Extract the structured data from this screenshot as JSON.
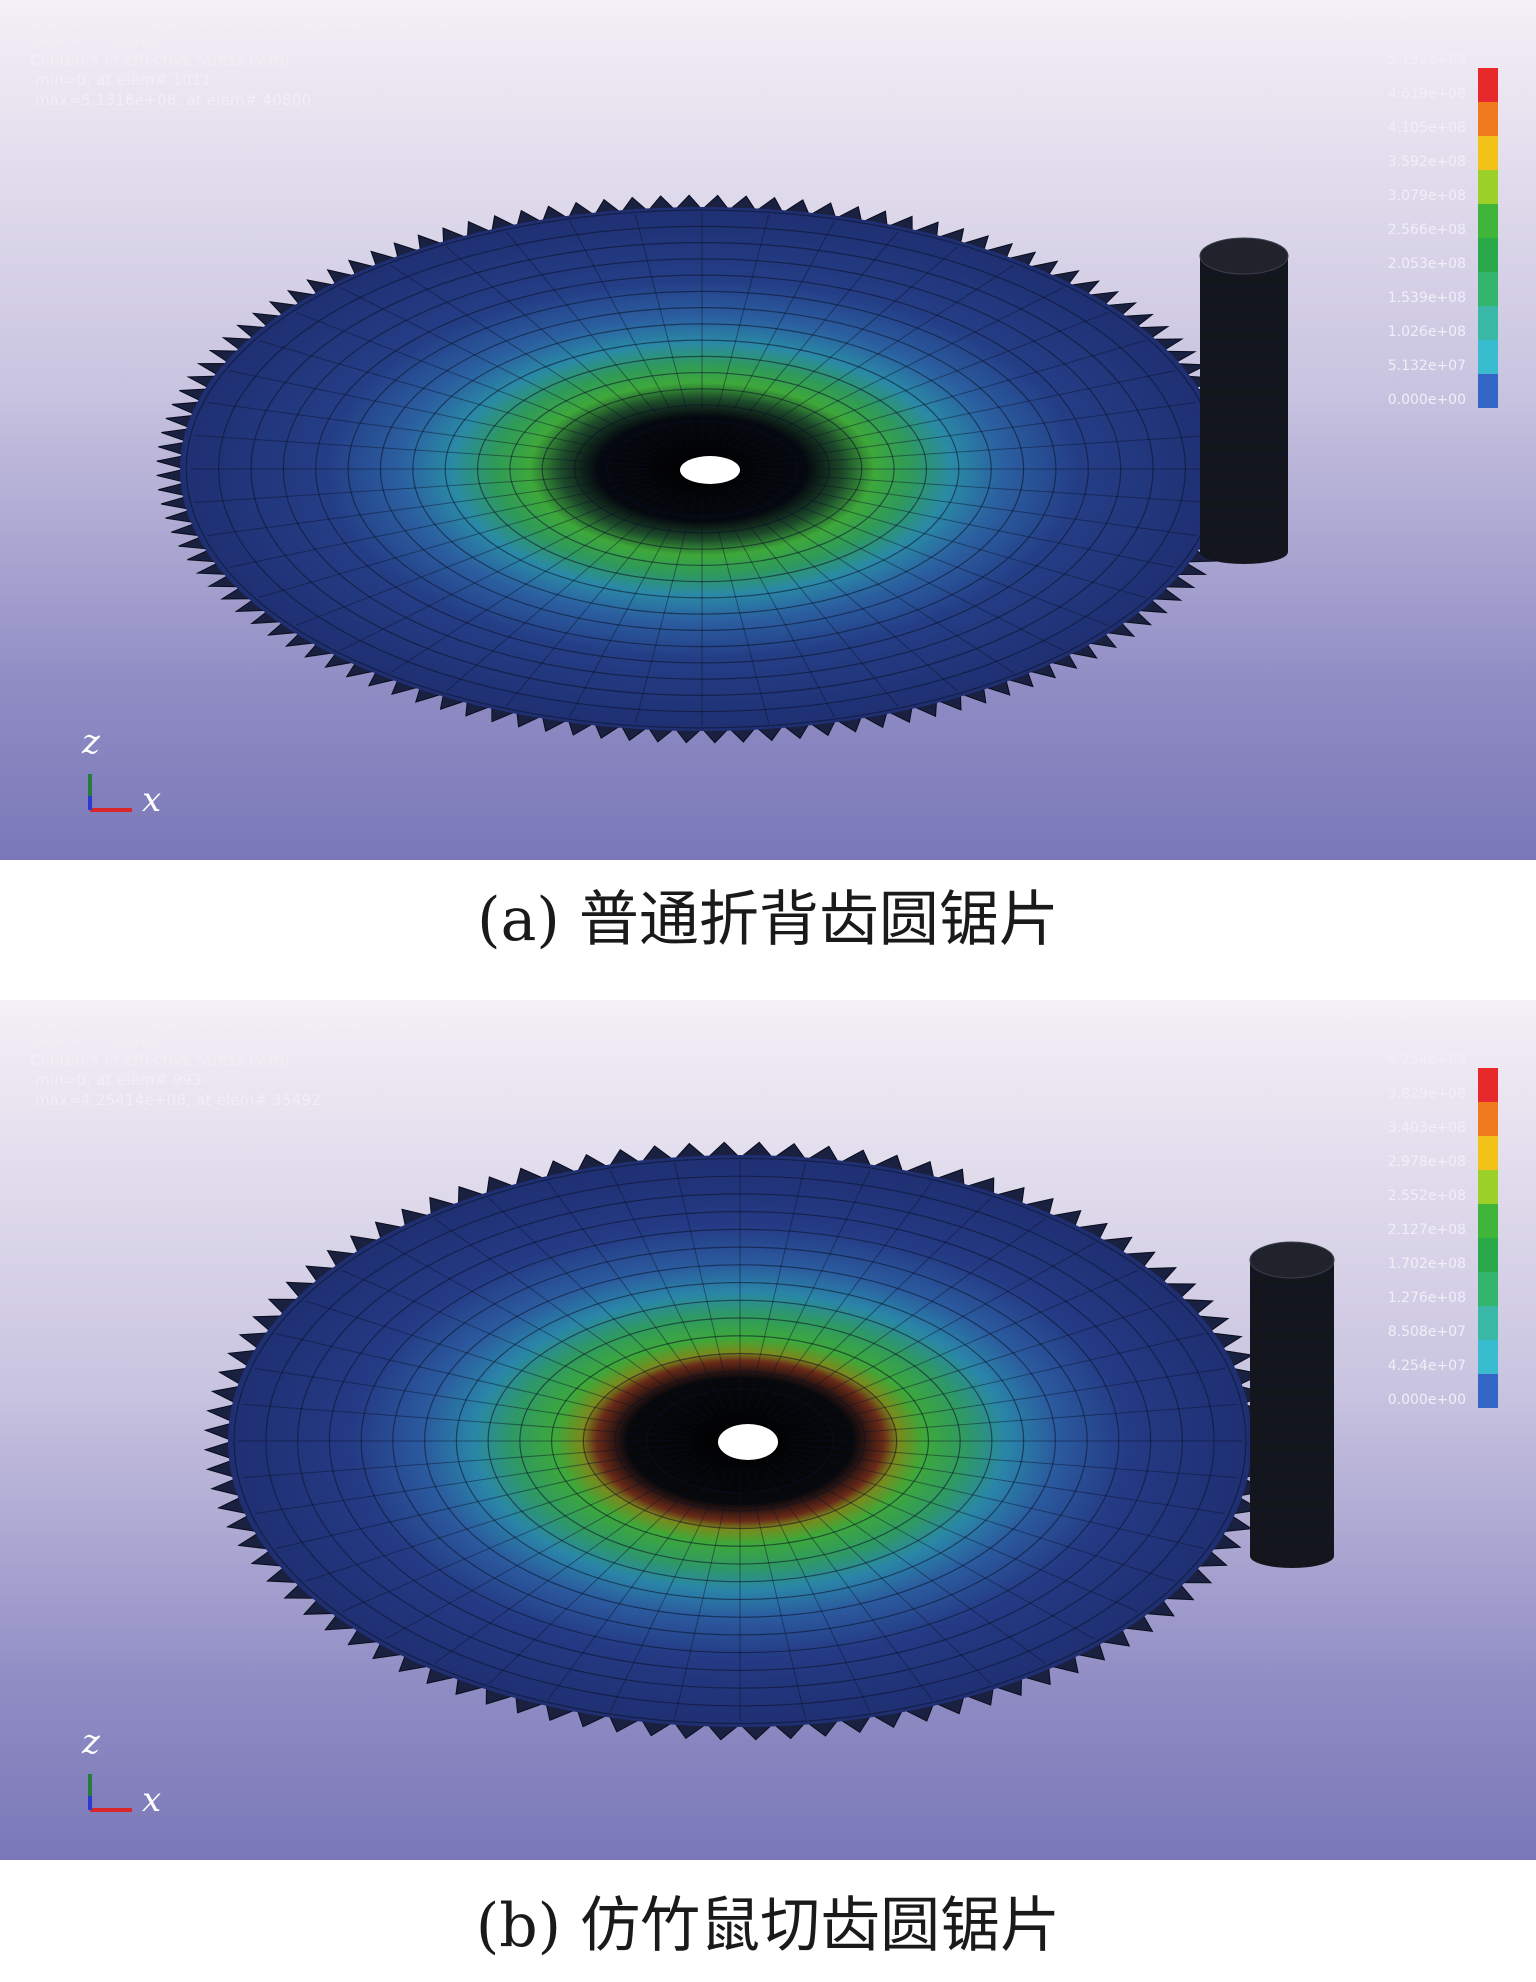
{
  "panels": [
    {
      "header": {
        "title": "LS-DYNA keyword deck by LS-PrePost",
        "time": "Time =      0.925",
        "contours": "Contours of Effective Stress (v-m)",
        "min": " min=0, at elem# 1011",
        "max": " max=5.1316e+08, at elem# 40800"
      },
      "legend": {
        "title": "Effective Stress (v-m)",
        "labels": [
          "5.132e+08",
          "4.619e+08",
          "4.105e+08",
          "3.592e+08",
          "3.079e+08",
          "2.566e+08",
          "2.053e+08",
          "1.539e+08",
          "1.026e+08",
          "5.132e+07",
          "0.000e+00"
        ]
      },
      "axis": {
        "z": "z",
        "x": "x"
      },
      "caption": "(a)  普通折背齿圆锯片"
    },
    {
      "header": {
        "title": "LS-DYNA keyword deck by LS-PrePost",
        "time": "Time =      0.925",
        "contours": "Contours of Effective Stress (v-m)",
        "min": " min=0, at elem# 993",
        "max": " max=4.25414e+08, at elem# 35492"
      },
      "legend": {
        "title": "Effective Stress (v-m)",
        "labels": [
          "4.254e+08",
          "3.829e+08",
          "3.403e+08",
          "2.978e+08",
          "2.552e+08",
          "2.127e+08",
          "1.702e+08",
          "1.276e+08",
          "8.508e+07",
          "4.254e+07",
          "0.000e+00"
        ]
      },
      "axis": {
        "z": "z",
        "x": "x"
      },
      "caption": "(b)  仿竹鼠切齿圆锯片"
    }
  ],
  "colors": {
    "legend_scale": [
      "#e8282a",
      "#f07a1e",
      "#f2c21a",
      "#9ed02a",
      "#3fb53a",
      "#2aa84a",
      "#33b56e",
      "#39b8a8",
      "#39bcd0",
      "#3466c8",
      "#2d3aa8"
    ],
    "disk_base": "#22336e",
    "disk_ring_green": "#3ea83a",
    "disk_ring_cyan": "#3aa9b8",
    "hot_spot": "#c8341e"
  }
}
